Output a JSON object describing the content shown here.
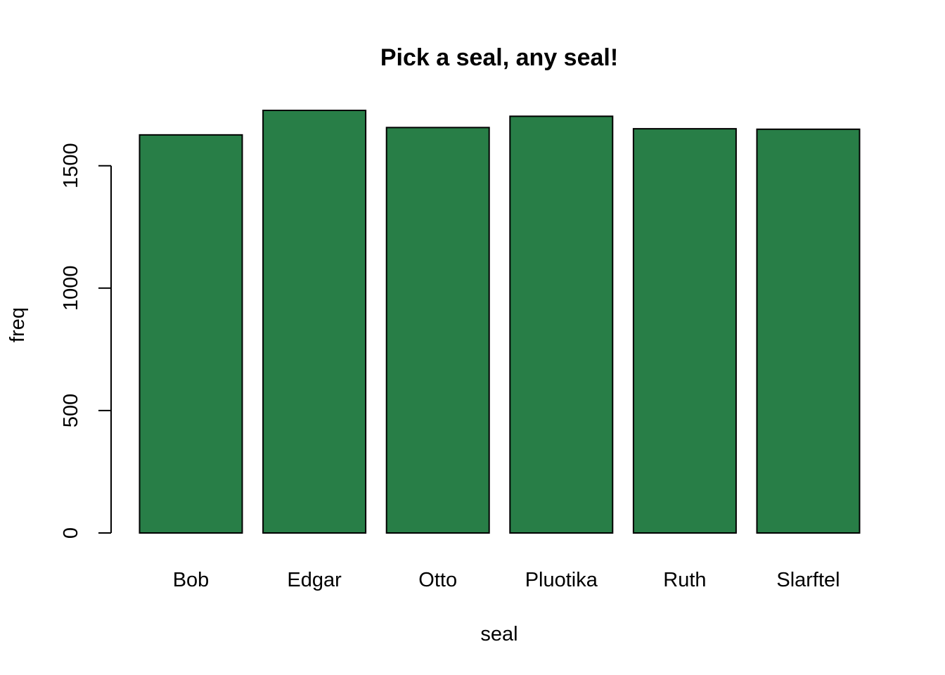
{
  "chart_data": {
    "type": "bar",
    "title": "Pick a seal, any seal!",
    "xlabel": "seal",
    "ylabel": "freq",
    "categories": [
      "Bob",
      "Edgar",
      "Otto",
      "Pluotika",
      "Ruth",
      "Slarftel"
    ],
    "values": [
      1626,
      1726,
      1656,
      1702,
      1651,
      1649
    ],
    "ylim": [
      0,
      1726
    ],
    "yticks": [
      0,
      500,
      1000,
      1500
    ],
    "grid": false,
    "legend": "none",
    "bar_color": "#287e47"
  }
}
